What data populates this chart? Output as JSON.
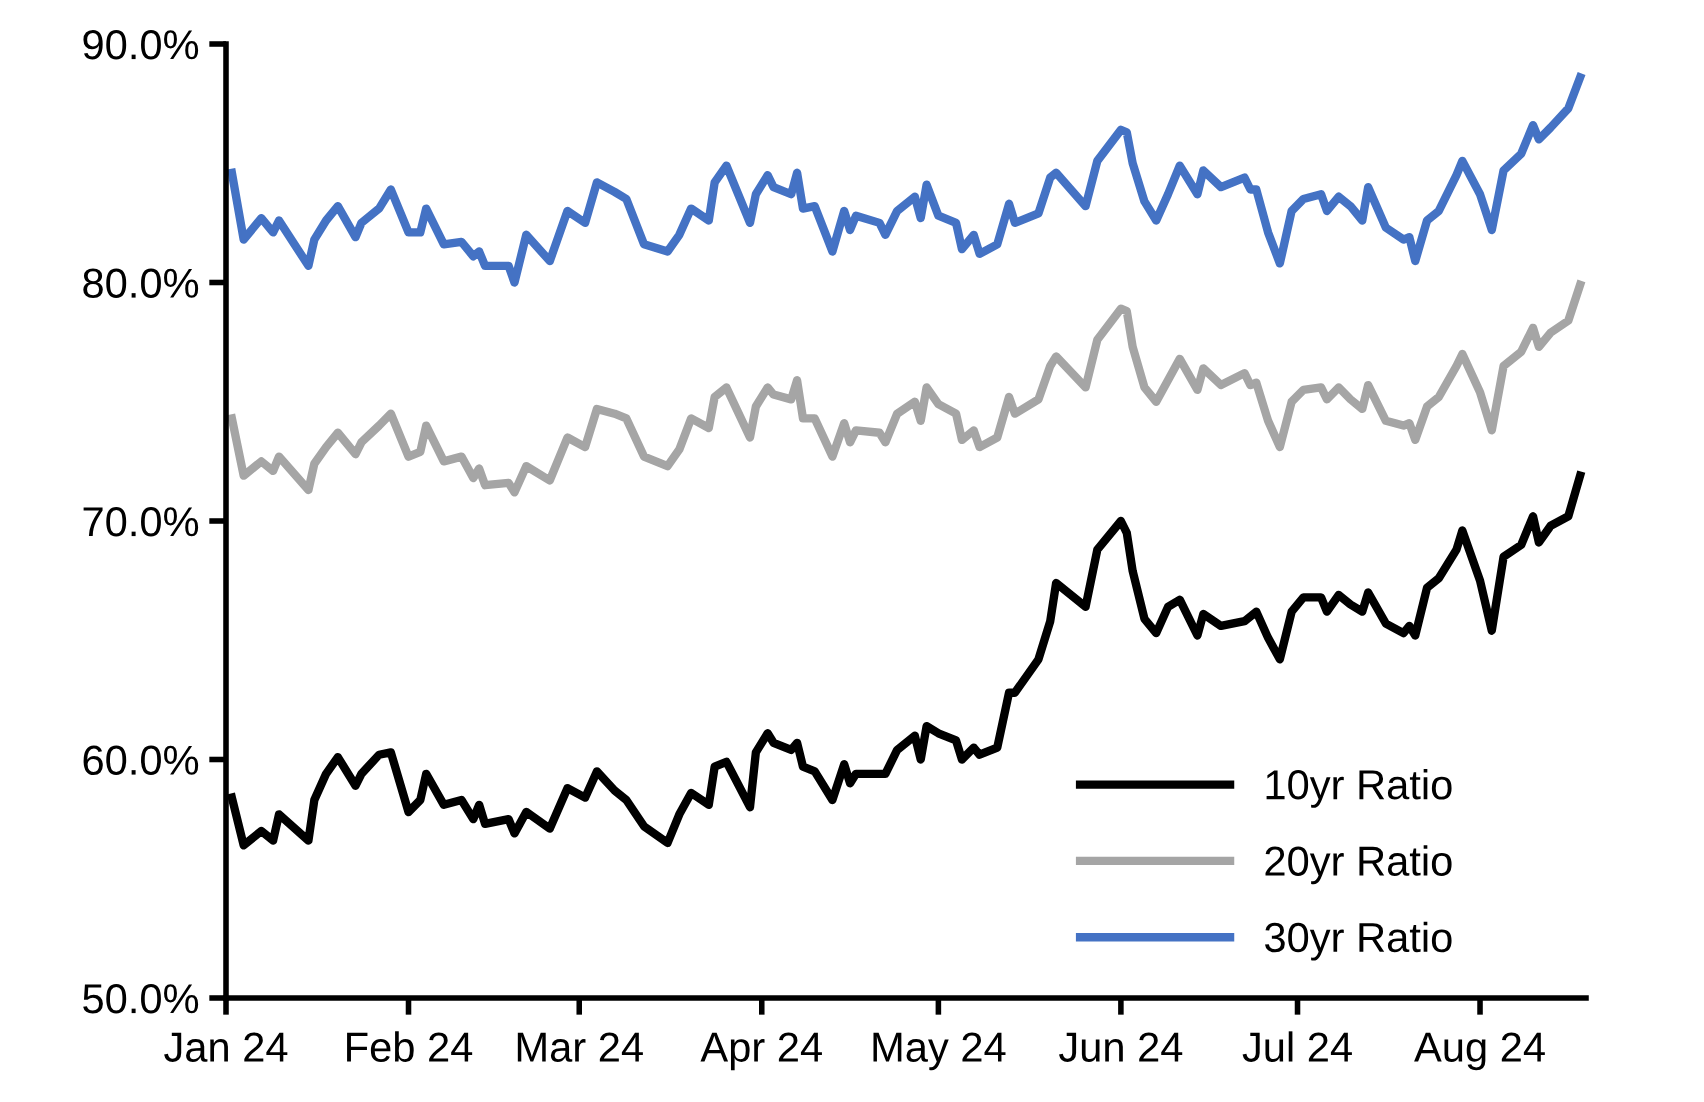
{
  "chart_data": {
    "type": "line",
    "x": [
      "2024-01-02",
      "2024-01-04",
      "2024-01-07",
      "2024-01-09",
      "2024-01-10",
      "2024-01-15",
      "2024-01-16",
      "2024-01-18",
      "2024-01-20",
      "2024-01-23",
      "2024-01-24",
      "2024-01-27",
      "2024-01-29",
      "2024-02-01",
      "2024-02-03",
      "2024-02-04",
      "2024-02-07",
      "2024-02-10",
      "2024-02-12",
      "2024-02-13",
      "2024-02-14",
      "2024-02-18",
      "2024-02-19",
      "2024-02-21",
      "2024-02-25",
      "2024-02-28",
      "2024-03-02",
      "2024-03-04",
      "2024-03-07",
      "2024-03-09",
      "2024-03-12",
      "2024-03-16",
      "2024-03-18",
      "2024-03-20",
      "2024-03-23",
      "2024-03-24",
      "2024-03-26",
      "2024-03-30",
      "2024-03-31",
      "2024-04-02",
      "2024-04-03",
      "2024-04-06",
      "2024-04-07",
      "2024-04-08",
      "2024-04-10",
      "2024-04-13",
      "2024-04-15",
      "2024-04-16",
      "2024-04-17",
      "2024-04-21",
      "2024-04-22",
      "2024-04-24",
      "2024-04-27",
      "2024-04-28",
      "2024-04-29",
      "2024-05-01",
      "2024-05-04",
      "2024-05-05",
      "2024-05-07",
      "2024-05-08",
      "2024-05-11",
      "2024-05-13",
      "2024-05-14",
      "2024-05-18",
      "2024-05-20",
      "2024-05-21",
      "2024-05-26",
      "2024-05-28",
      "2024-06-01",
      "2024-06-02",
      "2024-06-03",
      "2024-06-05",
      "2024-06-07",
      "2024-06-09",
      "2024-06-11",
      "2024-06-14",
      "2024-06-15",
      "2024-06-18",
      "2024-06-22",
      "2024-06-23",
      "2024-06-24",
      "2024-06-26",
      "2024-06-28",
      "2024-06-30",
      "2024-07-02",
      "2024-07-05",
      "2024-07-06",
      "2024-07-08",
      "2024-07-10",
      "2024-07-12",
      "2024-07-13",
      "2024-07-16",
      "2024-07-19",
      "2024-07-20",
      "2024-07-21",
      "2024-07-23",
      "2024-07-25",
      "2024-07-28",
      "2024-07-29",
      "2024-08-01",
      "2024-08-03",
      "2024-08-05",
      "2024-08-08",
      "2024-08-10",
      "2024-08-11",
      "2024-08-13",
      "2024-08-16",
      "2024-08-18"
    ],
    "series": [
      {
        "name": "10yr Ratio",
        "color": "#000000",
        "values": [
          58.4,
          56.4,
          57.0,
          56.6,
          57.7,
          56.6,
          58.3,
          59.4,
          60.1,
          58.9,
          59.4,
          60.2,
          60.3,
          57.8,
          58.3,
          59.4,
          58.1,
          58.3,
          57.5,
          58.1,
          57.3,
          57.5,
          56.9,
          57.8,
          57.1,
          58.8,
          58.4,
          59.5,
          58.7,
          58.3,
          57.2,
          56.5,
          57.7,
          58.6,
          58.1,
          59.7,
          59.9,
          58.0,
          60.3,
          61.1,
          60.7,
          60.4,
          60.7,
          59.7,
          59.5,
          58.3,
          59.8,
          59.0,
          59.4,
          59.4,
          59.4,
          60.4,
          61.0,
          60.0,
          61.4,
          61.1,
          60.8,
          60.0,
          60.5,
          60.2,
          60.5,
          62.8,
          62.8,
          64.2,
          65.8,
          67.4,
          66.4,
          68.8,
          70.0,
          69.5,
          67.9,
          65.9,
          65.3,
          66.4,
          66.7,
          65.2,
          66.1,
          65.6,
          65.8,
          66.0,
          66.2,
          65.1,
          64.2,
          66.2,
          66.8,
          66.8,
          66.2,
          66.9,
          66.5,
          66.2,
          67.0,
          65.7,
          65.3,
          65.6,
          65.2,
          67.2,
          67.6,
          68.8,
          69.6,
          67.5,
          65.4,
          68.5,
          69.0,
          70.2,
          69.1,
          69.8,
          70.2,
          71.9
        ]
      },
      {
        "name": "20yr Ratio",
        "color": "#a5a5a5",
        "values": [
          74.3,
          71.9,
          72.5,
          72.1,
          72.7,
          71.3,
          72.4,
          73.1,
          73.7,
          72.8,
          73.3,
          74.0,
          74.5,
          72.7,
          72.9,
          74.0,
          72.5,
          72.7,
          71.8,
          72.2,
          71.5,
          71.6,
          71.2,
          72.3,
          71.7,
          73.5,
          73.1,
          74.7,
          74.5,
          74.3,
          72.7,
          72.3,
          73.0,
          74.3,
          73.9,
          75.2,
          75.6,
          73.5,
          74.8,
          75.6,
          75.3,
          75.1,
          75.9,
          74.3,
          74.3,
          72.7,
          74.1,
          73.3,
          73.8,
          73.7,
          73.3,
          74.5,
          75.0,
          74.2,
          75.6,
          74.9,
          74.5,
          73.4,
          73.8,
          73.1,
          73.5,
          75.2,
          74.5,
          75.1,
          76.5,
          76.9,
          75.6,
          77.6,
          78.9,
          78.8,
          77.3,
          75.6,
          75.0,
          75.9,
          76.8,
          75.5,
          76.4,
          75.7,
          76.2,
          75.7,
          75.8,
          74.2,
          73.1,
          75.0,
          75.5,
          75.6,
          75.1,
          75.6,
          75.1,
          74.7,
          75.7,
          74.2,
          74.0,
          74.1,
          73.4,
          74.8,
          75.2,
          76.5,
          77.0,
          75.4,
          73.8,
          76.5,
          77.1,
          78.1,
          77.3,
          77.9,
          78.4,
          79.9
        ]
      },
      {
        "name": "30yr Ratio",
        "color": "#4472c4",
        "values": [
          84.6,
          81.8,
          82.7,
          82.1,
          82.6,
          80.7,
          81.8,
          82.6,
          83.2,
          81.9,
          82.5,
          83.1,
          83.9,
          82.1,
          82.1,
          83.1,
          81.6,
          81.7,
          81.1,
          81.3,
          80.7,
          80.7,
          80.0,
          82.0,
          80.9,
          83.0,
          82.5,
          84.2,
          83.8,
          83.5,
          81.6,
          81.3,
          82.0,
          83.1,
          82.6,
          84.2,
          84.9,
          82.5,
          83.7,
          84.5,
          84.0,
          83.7,
          84.6,
          83.1,
          83.2,
          81.3,
          83.0,
          82.2,
          82.8,
          82.5,
          82.0,
          83.0,
          83.6,
          82.7,
          84.1,
          82.8,
          82.5,
          81.4,
          82.0,
          81.2,
          81.6,
          83.3,
          82.5,
          82.9,
          84.4,
          84.6,
          83.2,
          85.1,
          86.4,
          86.3,
          85.0,
          83.4,
          82.6,
          83.7,
          84.9,
          83.7,
          84.7,
          84.0,
          84.4,
          83.9,
          83.9,
          82.1,
          80.8,
          83.0,
          83.5,
          83.7,
          83.0,
          83.6,
          83.2,
          82.6,
          84.0,
          82.3,
          81.8,
          81.9,
          80.9,
          82.6,
          83.0,
          84.5,
          85.1,
          83.7,
          82.2,
          84.7,
          85.4,
          86.6,
          86.0,
          86.5,
          87.3,
          88.6
        ]
      }
    ],
    "xlim": [
      "2024-01-01",
      "2024-08-19"
    ],
    "xticks": [
      {
        "value": "2024-01-01",
        "label": "Jan 24"
      },
      {
        "value": "2024-02-01",
        "label": "Feb 24"
      },
      {
        "value": "2024-03-01",
        "label": "Mar 24"
      },
      {
        "value": "2024-04-01",
        "label": "Apr 24"
      },
      {
        "value": "2024-05-01",
        "label": "May 24"
      },
      {
        "value": "2024-06-01",
        "label": "Jun 24"
      },
      {
        "value": "2024-07-01",
        "label": "Jul 24"
      },
      {
        "value": "2024-08-01",
        "label": "Aug 24"
      }
    ],
    "ylim": [
      50,
      90
    ],
    "yticks": [
      {
        "value": 50,
        "label": "50.0%"
      },
      {
        "value": 60,
        "label": "60.0%"
      },
      {
        "value": 70,
        "label": "70.0%"
      },
      {
        "value": 80,
        "label": "80.0%"
      },
      {
        "value": 90,
        "label": "90.0%"
      }
    ],
    "grid": false,
    "legend": "bottom right",
    "marker": "none",
    "line_style": "solid"
  }
}
